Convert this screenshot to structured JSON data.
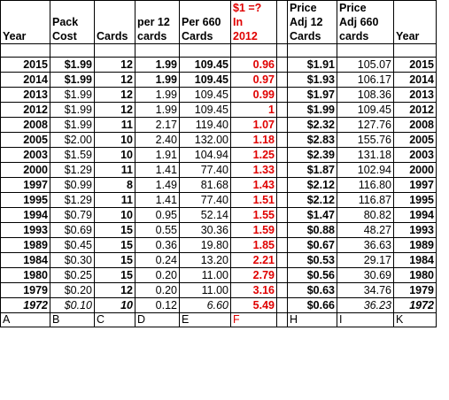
{
  "headers": {
    "line1": [
      "",
      "",
      "",
      "",
      "",
      "$1 =?",
      "",
      "Price",
      "Price",
      ""
    ],
    "line2": [
      "",
      "Pack",
      "",
      "per 12",
      "Per 660",
      "In",
      "",
      "Adj 12",
      "Adj 660",
      ""
    ],
    "line3": [
      "Year",
      "Cost",
      "Cards",
      "cards",
      "Cards",
      "2012",
      "",
      "Cards",
      "cards",
      "Year"
    ]
  },
  "rows": [
    {
      "style": "bold",
      "cells": [
        "2015",
        "$1.99",
        "12",
        "1.99",
        "109.45",
        "0.96",
        "",
        "$1.91",
        "105.07",
        "2015"
      ]
    },
    {
      "style": "mixed",
      "cells": [
        "2014",
        "$1.99",
        "12",
        "1.99",
        "109.45",
        "0.97",
        "",
        "$1.93",
        "106.17",
        "2014"
      ]
    },
    {
      "style": "normal",
      "cells": [
        "2013",
        "$1.99",
        "12",
        "1.99",
        "109.45",
        "0.99",
        "",
        "$1.97",
        "108.36",
        "2013"
      ]
    },
    {
      "style": "normal",
      "cells": [
        "2012",
        "$1.99",
        "12",
        "1.99",
        "109.45",
        "1",
        "",
        "$1.99",
        "109.45",
        "2012"
      ]
    },
    {
      "style": "normal",
      "cells": [
        "2008",
        "$1.99",
        "11",
        "2.17",
        "119.40",
        "1.07",
        "",
        "$2.32",
        "127.76",
        "2008"
      ]
    },
    {
      "style": "normal",
      "cells": [
        "2005",
        "$2.00",
        "10",
        "2.40",
        "132.00",
        "1.18",
        "",
        "$2.83",
        "155.76",
        "2005"
      ]
    },
    {
      "style": "normal",
      "cells": [
        "2003",
        "$1.59",
        "10",
        "1.91",
        "104.94",
        "1.25",
        "",
        "$2.39",
        "131.18",
        "2003"
      ]
    },
    {
      "style": "normal",
      "cells": [
        "2000",
        "$1.29",
        "11",
        "1.41",
        "77.40",
        "1.33",
        "",
        "$1.87",
        "102.94",
        "2000"
      ]
    },
    {
      "style": "normal",
      "cells": [
        "1997",
        "$0.99",
        "8",
        "1.49",
        "81.68",
        "1.43",
        "",
        "$2.12",
        "116.80",
        "1997"
      ]
    },
    {
      "style": "normal",
      "cells": [
        "1995",
        "$1.29",
        "11",
        "1.41",
        "77.40",
        "1.51",
        "",
        "$2.12",
        "116.87",
        "1995"
      ]
    },
    {
      "style": "normal",
      "cells": [
        "1994",
        "$0.79",
        "10",
        "0.95",
        "52.14",
        "1.55",
        "",
        "$1.47",
        "80.82",
        "1994"
      ]
    },
    {
      "style": "normal",
      "cells": [
        "1993",
        "$0.69",
        "15",
        "0.55",
        "30.36",
        "1.59",
        "",
        "$0.88",
        "48.27",
        "1993"
      ]
    },
    {
      "style": "normal",
      "cells": [
        "1989",
        "$0.45",
        "15",
        "0.36",
        "19.80",
        "1.85",
        "",
        "$0.67",
        "36.63",
        "1989"
      ]
    },
    {
      "style": "normal",
      "cells": [
        "1984",
        "$0.30",
        "15",
        "0.24",
        "13.20",
        "2.21",
        "",
        "$0.53",
        "29.17",
        "1984"
      ]
    },
    {
      "style": "normal",
      "cells": [
        "1980",
        "$0.25",
        "15",
        "0.20",
        "11.00",
        "2.79",
        "",
        "$0.56",
        "30.69",
        "1980"
      ]
    },
    {
      "style": "normal",
      "cells": [
        "1979",
        "$0.20",
        "12",
        "0.20",
        "11.00",
        "3.16",
        "",
        "$0.63",
        "34.76",
        "1979"
      ]
    },
    {
      "style": "italic",
      "cells": [
        "1972",
        "$0.10",
        "10",
        "0.12",
        "6.60",
        "5.49",
        "",
        "$0.66",
        "36.23",
        "1972"
      ]
    }
  ],
  "column_letters": [
    "A",
    "B",
    "C",
    "D",
    "E",
    "F",
    "",
    "H",
    "I",
    "K"
  ],
  "colors": {
    "red": "#e00000",
    "text": "#000000",
    "grid": "#000000"
  }
}
